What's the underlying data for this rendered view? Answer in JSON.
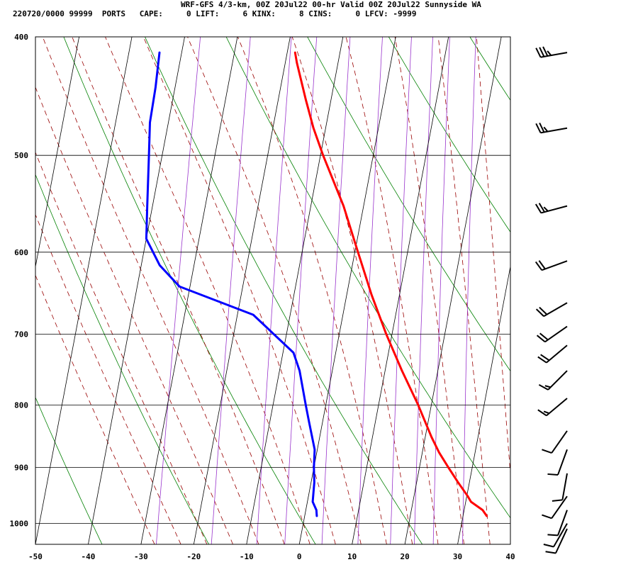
{
  "header": {
    "title": "WRF-GFS 4/3-km, 00Z 20Jul22 00-hr Valid 00Z 20Jul22 Sunnyside WA",
    "indices": "220720/0000 99999  PORTS   CAPE:     0 LIFT:     6 KINX:     8 CINS:     0 LFCV: -9999"
  },
  "colors": {
    "temperature": "#ff0000",
    "dewpoint": "#0000ff",
    "isotherm_grid": "#000000",
    "dry_adiabat": "#008000",
    "moist_adiabat": "#990000",
    "mixing_ratio": "#9933cc",
    "wind_barb": "#000000"
  },
  "chart_data": {
    "type": "line",
    "subtype": "skew-T log-p sounding",
    "x_axis": {
      "unit": "°C",
      "range": [
        -50,
        40
      ],
      "ticks": [
        -50,
        -40,
        -30,
        -20,
        -10,
        0,
        10,
        20,
        30,
        40
      ]
    },
    "y_axis": {
      "unit": "hPa",
      "scale": "log",
      "range": [
        1040,
        400
      ],
      "ticks": [
        400,
        500,
        600,
        700,
        800,
        900,
        1000
      ]
    },
    "grid": true,
    "background_lines": [
      "isotherms",
      "dry adiabats",
      "moist adiabats",
      "mixing ratio lines"
    ],
    "series": [
      {
        "id": "temperature",
        "color": "#ff0000",
        "points": [
          {
            "p": 986,
            "t": 34.5
          },
          {
            "p": 975,
            "t": 33.5
          },
          {
            "p": 960,
            "t": 31.0
          },
          {
            "p": 950,
            "t": 30.2
          },
          {
            "p": 925,
            "t": 27.8
          },
          {
            "p": 900,
            "t": 25.5
          },
          {
            "p": 875,
            "t": 23.2
          },
          {
            "p": 850,
            "t": 21.2
          },
          {
            "p": 800,
            "t": 17.5
          },
          {
            "p": 750,
            "t": 13.2
          },
          {
            "p": 700,
            "t": 8.9
          },
          {
            "p": 650,
            "t": 4.7
          },
          {
            "p": 600,
            "t": 0.6
          },
          {
            "p": 550,
            "t": -3.8
          },
          {
            "p": 500,
            "t": -9.5
          },
          {
            "p": 475,
            "t": -12.3
          },
          {
            "p": 450,
            "t": -14.8
          },
          {
            "p": 420,
            "t": -17.8
          },
          {
            "p": 412,
            "t": -18.5
          }
        ]
      },
      {
        "id": "dewpoint",
        "color": "#0000ff",
        "points": [
          {
            "p": 986,
            "t": 2.3
          },
          {
            "p": 975,
            "t": 2.0
          },
          {
            "p": 960,
            "t": 1.0
          },
          {
            "p": 925,
            "t": 0.6
          },
          {
            "p": 900,
            "t": 0.0
          },
          {
            "p": 870,
            "t": -0.5
          },
          {
            "p": 825,
            "t": -2.6
          },
          {
            "p": 800,
            "t": -3.8
          },
          {
            "p": 750,
            "t": -6.2
          },
          {
            "p": 725,
            "t": -8.0
          },
          {
            "p": 675,
            "t": -17.0
          },
          {
            "p": 640,
            "t": -32.0
          },
          {
            "p": 615,
            "t": -36.5
          },
          {
            "p": 585,
            "t": -40.0
          },
          {
            "p": 550,
            "t": -41.0
          },
          {
            "p": 500,
            "t": -42.5
          },
          {
            "p": 470,
            "t": -43.5
          },
          {
            "p": 440,
            "t": -43.7
          },
          {
            "p": 412,
            "t": -44.2
          }
        ]
      }
    ],
    "wind_barbs": [
      {
        "p": 412,
        "dir": 260,
        "spd": 35
      },
      {
        "p": 475,
        "dir": 260,
        "spd": 25
      },
      {
        "p": 550,
        "dir": 255,
        "spd": 25
      },
      {
        "p": 610,
        "dir": 250,
        "spd": 20
      },
      {
        "p": 660,
        "dir": 240,
        "spd": 20
      },
      {
        "p": 690,
        "dir": 235,
        "spd": 20
      },
      {
        "p": 715,
        "dir": 230,
        "spd": 20
      },
      {
        "p": 750,
        "dir": 225,
        "spd": 15
      },
      {
        "p": 790,
        "dir": 230,
        "spd": 15
      },
      {
        "p": 840,
        "dir": 215,
        "spd": 10
      },
      {
        "p": 870,
        "dir": 200,
        "spd": 10
      },
      {
        "p": 910,
        "dir": 190,
        "spd": 10
      },
      {
        "p": 950,
        "dir": 215,
        "spd": 10
      },
      {
        "p": 975,
        "dir": 200,
        "spd": 10
      },
      {
        "p": 1000,
        "dir": 210,
        "spd": 10
      },
      {
        "p": 1010,
        "dir": 205,
        "spd": 10
      }
    ]
  }
}
